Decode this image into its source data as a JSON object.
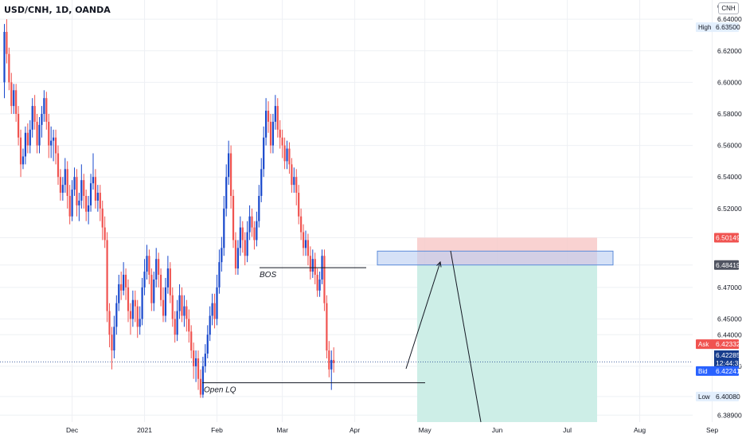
{
  "symbol_title": "USD/CNH, 1D, OANDA",
  "currency": "CNH",
  "top_price_cut": "6",
  "chart_data": {
    "type": "candlestick",
    "symbol": "USD/CNH",
    "interval": "1D",
    "source": "OANDA",
    "ylim": [
      6.3745,
      6.6522
    ],
    "y_ticks": [
      "6.64000",
      "6.62000",
      "6.60000",
      "6.58000",
      "6.56000",
      "6.54000",
      "6.52000",
      "6.50149",
      "6.48419",
      "6.47000",
      "6.45000",
      "6.44000",
      "6.42000",
      "6.40080",
      "6.38900"
    ],
    "y_tick_values": [
      6.64,
      6.62,
      6.6,
      6.58,
      6.56,
      6.54,
      6.52,
      6.50149,
      6.48419,
      6.47,
      6.45,
      6.44,
      6.42,
      6.4008,
      6.389
    ],
    "x_ticks": [
      {
        "label": "Dec",
        "day": 29
      },
      {
        "label": "2021",
        "day": 60
      },
      {
        "label": "Feb",
        "day": 91
      },
      {
        "label": "Mar",
        "day": 119
      },
      {
        "label": "Apr",
        "day": 150
      },
      {
        "label": "May",
        "day": 180
      },
      {
        "label": "Jun",
        "day": 211
      },
      {
        "label": "Jul",
        "day": 241
      },
      {
        "label": "Aug",
        "day": 272
      },
      {
        "label": "Sep",
        "day": 303
      }
    ],
    "colors": {
      "up": "#1848cc",
      "down": "#f05350",
      "grid": "#eef0f4"
    },
    "candles": [
      [
        6.6,
        6.632,
        6.637,
        6.59
      ],
      [
        6.632,
        6.618,
        6.64,
        6.612
      ],
      [
        6.618,
        6.6,
        6.622,
        6.595
      ],
      [
        6.6,
        6.585,
        6.606,
        6.58
      ],
      [
        6.585,
        6.595,
        6.599,
        6.58
      ],
      [
        6.595,
        6.58,
        6.599,
        6.575
      ],
      [
        6.58,
        6.565,
        6.585,
        6.56
      ],
      [
        6.565,
        6.548,
        6.57,
        6.54
      ],
      [
        6.548,
        6.553,
        6.558,
        6.545
      ],
      [
        6.553,
        6.568,
        6.572,
        6.548
      ],
      [
        6.568,
        6.56,
        6.574,
        6.555
      ],
      [
        6.56,
        6.57,
        6.576,
        6.555
      ],
      [
        6.57,
        6.585,
        6.59,
        6.565
      ],
      [
        6.585,
        6.575,
        6.592,
        6.57
      ],
      [
        6.575,
        6.56,
        6.58,
        6.555
      ],
      [
        6.56,
        6.573,
        6.578,
        6.555
      ],
      [
        6.573,
        6.58,
        6.585,
        6.565
      ],
      [
        6.58,
        6.59,
        6.595,
        6.575
      ],
      [
        6.59,
        6.575,
        6.594,
        6.57
      ],
      [
        6.575,
        6.56,
        6.58,
        6.552
      ],
      [
        6.56,
        6.563,
        6.572,
        6.552
      ],
      [
        6.563,
        6.565,
        6.57,
        6.55
      ],
      [
        6.565,
        6.555,
        6.57,
        6.548
      ],
      [
        6.555,
        6.54,
        6.56,
        6.535
      ],
      [
        6.54,
        6.53,
        6.545,
        6.525
      ],
      [
        6.53,
        6.535,
        6.54,
        6.525
      ],
      [
        6.535,
        6.545,
        6.552,
        6.53
      ],
      [
        6.545,
        6.528,
        6.55,
        6.52
      ],
      [
        6.528,
        6.515,
        6.535,
        6.51
      ],
      [
        6.515,
        6.532,
        6.538,
        6.512
      ],
      [
        6.532,
        6.54,
        6.546,
        6.528
      ],
      [
        6.54,
        6.522,
        6.545,
        6.515
      ],
      [
        6.522,
        6.525,
        6.53,
        6.512
      ],
      [
        6.525,
        6.538,
        6.548,
        6.52
      ],
      [
        6.538,
        6.528,
        6.542,
        6.52
      ],
      [
        6.528,
        6.518,
        6.532,
        6.512
      ],
      [
        6.518,
        6.522,
        6.528,
        6.51
      ],
      [
        6.522,
        6.536,
        6.542,
        6.518
      ],
      [
        6.536,
        6.54,
        6.555,
        6.532
      ],
      [
        6.54,
        6.525,
        6.545,
        6.52
      ],
      [
        6.525,
        6.53,
        6.535,
        6.518
      ],
      [
        6.53,
        6.52,
        6.535,
        6.512
      ],
      [
        6.52,
        6.508,
        6.525,
        6.5
      ],
      [
        6.508,
        6.5,
        6.515,
        6.495
      ],
      [
        6.5,
        6.455,
        6.505,
        6.448
      ],
      [
        6.455,
        6.44,
        6.46,
        6.432
      ],
      [
        6.44,
        6.43,
        6.445,
        6.418
      ],
      [
        6.43,
        6.445,
        6.452,
        6.425
      ],
      [
        6.445,
        6.46,
        6.465,
        6.44
      ],
      [
        6.46,
        6.472,
        6.478,
        6.455
      ],
      [
        6.472,
        6.468,
        6.48,
        6.462
      ],
      [
        6.468,
        6.478,
        6.486,
        6.465
      ],
      [
        6.478,
        6.47,
        6.482,
        6.462
      ],
      [
        6.47,
        6.455,
        6.475,
        6.448
      ],
      [
        6.455,
        6.45,
        6.46,
        6.44
      ],
      [
        6.45,
        6.462,
        6.468,
        6.445
      ],
      [
        6.462,
        6.458,
        6.468,
        6.448
      ],
      [
        6.458,
        6.445,
        6.462,
        6.438
      ],
      [
        6.445,
        6.45,
        6.458,
        6.44
      ],
      [
        6.45,
        6.47,
        6.476,
        6.446
      ],
      [
        6.47,
        6.48,
        6.488,
        6.465
      ],
      [
        6.48,
        6.49,
        6.497,
        6.475
      ],
      [
        6.49,
        6.478,
        6.494,
        6.472
      ],
      [
        6.478,
        6.46,
        6.482,
        6.455
      ],
      [
        6.46,
        6.475,
        6.48,
        6.455
      ],
      [
        6.475,
        6.488,
        6.495,
        6.47
      ],
      [
        6.488,
        6.478,
        6.492,
        6.47
      ],
      [
        6.478,
        6.462,
        6.482,
        6.458
      ],
      [
        6.462,
        6.452,
        6.47,
        6.448
      ],
      [
        6.452,
        6.47,
        6.476,
        6.448
      ],
      [
        6.47,
        6.482,
        6.49,
        6.466
      ],
      [
        6.482,
        6.465,
        6.486,
        6.46
      ],
      [
        6.465,
        6.45,
        6.47,
        6.445
      ],
      [
        6.45,
        6.44,
        6.455,
        6.435
      ],
      [
        6.44,
        6.455,
        6.462,
        6.436
      ],
      [
        6.455,
        6.465,
        6.472,
        6.45
      ],
      [
        6.465,
        6.452,
        6.47,
        6.448
      ],
      [
        6.452,
        6.458,
        6.465,
        6.445
      ],
      [
        6.458,
        6.45,
        6.462,
        6.442
      ],
      [
        6.45,
        6.442,
        6.456,
        6.435
      ],
      [
        6.442,
        6.43,
        6.446,
        6.425
      ],
      [
        6.43,
        6.42,
        6.435,
        6.412
      ],
      [
        6.42,
        6.425,
        6.43,
        6.41
      ],
      [
        6.425,
        6.412,
        6.43,
        6.405
      ],
      [
        6.412,
        6.402,
        6.418,
        6.4
      ],
      [
        6.402,
        6.42,
        6.426,
        6.4
      ],
      [
        6.42,
        6.428,
        6.434,
        6.416
      ],
      [
        6.428,
        6.44,
        6.446,
        6.425
      ],
      [
        6.44,
        6.452,
        6.458,
        6.436
      ],
      [
        6.452,
        6.46,
        6.466,
        6.446
      ],
      [
        6.46,
        6.45,
        6.466,
        6.444
      ],
      [
        6.45,
        6.47,
        6.478,
        6.446
      ],
      [
        6.47,
        6.486,
        6.494,
        6.466
      ],
      [
        6.486,
        6.495,
        6.502,
        6.48
      ],
      [
        6.495,
        6.52,
        6.528,
        6.49
      ],
      [
        6.52,
        6.54,
        6.548,
        6.515
      ],
      [
        6.54,
        6.555,
        6.563,
        6.535
      ],
      [
        6.555,
        6.528,
        6.56,
        6.52
      ],
      [
        6.528,
        6.5,
        6.532,
        6.495
      ],
      [
        6.5,
        6.482,
        6.505,
        6.478
      ],
      [
        6.482,
        6.495,
        6.5,
        6.478
      ],
      [
        6.495,
        6.508,
        6.515,
        6.49
      ],
      [
        6.508,
        6.5,
        6.512,
        6.492
      ],
      [
        6.5,
        6.49,
        6.505,
        6.484
      ],
      [
        6.49,
        6.505,
        6.512,
        6.486
      ],
      [
        6.505,
        6.515,
        6.522,
        6.5
      ],
      [
        6.515,
        6.508,
        6.52,
        6.502
      ],
      [
        6.508,
        6.5,
        6.512,
        6.494
      ],
      [
        6.5,
        6.512,
        6.518,
        6.496
      ],
      [
        6.512,
        6.528,
        6.535,
        6.508
      ],
      [
        6.528,
        6.545,
        6.552,
        6.524
      ],
      [
        6.545,
        6.565,
        6.572,
        6.54
      ],
      [
        6.565,
        6.582,
        6.59,
        6.56
      ],
      [
        6.582,
        6.575,
        6.588,
        6.568
      ],
      [
        6.575,
        6.56,
        6.58,
        6.555
      ],
      [
        6.56,
        6.575,
        6.58,
        6.555
      ],
      [
        6.575,
        6.585,
        6.592,
        6.57
      ],
      [
        6.585,
        6.57,
        6.59,
        6.565
      ],
      [
        6.57,
        6.565,
        6.576,
        6.558
      ],
      [
        6.565,
        6.56,
        6.57,
        6.552
      ],
      [
        6.56,
        6.55,
        6.565,
        6.545
      ],
      [
        6.55,
        6.558,
        6.563,
        6.545
      ],
      [
        6.558,
        6.548,
        6.562,
        6.542
      ],
      [
        6.548,
        6.535,
        6.552,
        6.53
      ],
      [
        6.535,
        6.54,
        6.546,
        6.53
      ],
      [
        6.54,
        6.53,
        6.545,
        6.522
      ],
      [
        6.53,
        6.515,
        6.535,
        6.51
      ],
      [
        6.515,
        6.505,
        6.52,
        6.5
      ],
      [
        6.505,
        6.495,
        6.51,
        6.49
      ],
      [
        6.495,
        6.5,
        6.506,
        6.49
      ],
      [
        6.5,
        6.49,
        6.504,
        6.484
      ],
      [
        6.49,
        6.48,
        6.496,
        6.475
      ],
      [
        6.48,
        6.488,
        6.494,
        6.476
      ],
      [
        6.488,
        6.478,
        6.492,
        6.472
      ],
      [
        6.478,
        6.468,
        6.482,
        6.464
      ],
      [
        6.468,
        6.475,
        6.48,
        6.464
      ],
      [
        6.475,
        6.49,
        6.494,
        6.472
      ],
      [
        6.49,
        6.46,
        6.494,
        6.455
      ],
      [
        6.46,
        6.43,
        6.465,
        6.425
      ],
      [
        6.43,
        6.418,
        6.436,
        6.413
      ],
      [
        6.418,
        6.424,
        6.43,
        6.405
      ],
      [
        6.424,
        6.422,
        6.432,
        6.416
      ]
    ],
    "lines": [
      {
        "label": "BOS",
        "price": 6.4825
      },
      {
        "label": "Open LQ",
        "price": 6.4095
      }
    ],
    "position": {
      "entry_zone": [
        6.4842,
        6.493
      ],
      "stop_zone": [
        6.4842,
        6.5015
      ],
      "target_zone": [
        6.37,
        6.4842
      ]
    },
    "price_labels": {
      "high": {
        "tag": "High",
        "value": "6.63500"
      },
      "sell_level": {
        "value": "6.50149",
        "color": "#f05350"
      },
      "entry_level": {
        "value": "6.48419",
        "color": "#505461"
      },
      "ask": {
        "tag": "Ask",
        "value": "6.42332",
        "color": "#f05350"
      },
      "last": {
        "value": "6.42285",
        "countdown": "12:44:32",
        "color": "#163c8c"
      },
      "bid": {
        "tag": "Bid",
        "value": "6.42241",
        "color": "#2962ff"
      },
      "low": {
        "tag": "Low",
        "value": "6.40080"
      }
    }
  }
}
